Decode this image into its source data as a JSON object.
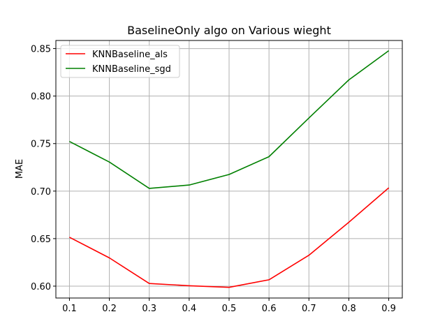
{
  "chart_data": {
    "type": "line",
    "title": "BaselineOnly algo on Various wieght",
    "xlabel": "",
    "ylabel": "MAE",
    "x": [
      0.1,
      0.2,
      0.3,
      0.4,
      0.5,
      0.6,
      0.7,
      0.8,
      0.9
    ],
    "xticks": [
      "0.1",
      "0.2",
      "0.3",
      "0.4",
      "0.5",
      "0.6",
      "0.7",
      "0.8",
      "0.9"
    ],
    "yticks": [
      "0.60",
      "0.65",
      "0.70",
      "0.75",
      "0.80",
      "0.85"
    ],
    "xlim": [
      0.066,
      0.934
    ],
    "ylim": [
      0.5875,
      0.8585
    ],
    "grid": true,
    "legend_position": "upper-left",
    "series": [
      {
        "name": "KNNBaseline_als",
        "color": "#ff0000",
        "values": [
          0.6515,
          0.6297,
          0.6028,
          0.6004,
          0.5987,
          0.6067,
          0.6325,
          0.6672,
          0.7035
        ]
      },
      {
        "name": "KNNBaseline_sgd",
        "color": "#008000",
        "values": [
          0.7522,
          0.7306,
          0.7029,
          0.7064,
          0.7175,
          0.7362,
          0.7769,
          0.817,
          0.8478
        ]
      }
    ]
  }
}
